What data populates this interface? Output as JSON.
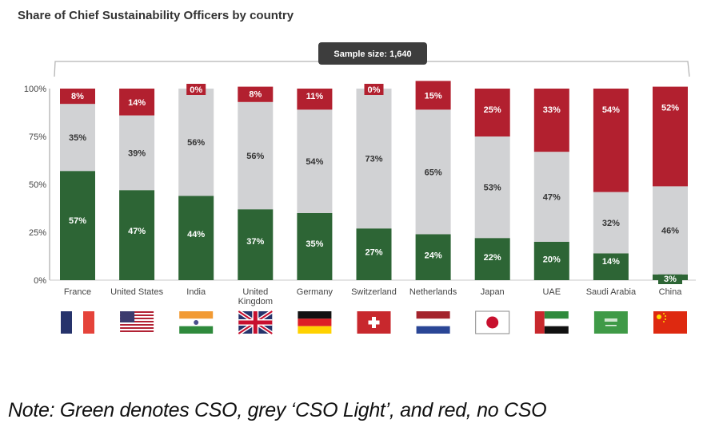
{
  "title": "Share of Chief Sustainability Officers by country",
  "sample_badge": "Sample size: 1,640",
  "note": "Note: Green denotes CSO, grey ‘CSO Light’, and red, no CSO",
  "colors": {
    "cso": "#2d6535",
    "cso_light": "#d1d2d4",
    "no_cso": "#b2202f",
    "badge_bg": "#3d3d3d",
    "axis": "#9a9a9a"
  },
  "chart_data": {
    "type": "bar",
    "stacked": true,
    "title": "Share of Chief Sustainability Officers by country",
    "xlabel": "",
    "ylabel": "",
    "ylim": [
      0,
      100
    ],
    "yticks": [
      "0%",
      "25%",
      "50%",
      "75%",
      "100%"
    ],
    "ytick_values": [
      0,
      25,
      50,
      75,
      100
    ],
    "categories": [
      "France",
      "United States",
      "India",
      "United Kingdom",
      "Germany",
      "Switzerland",
      "Netherlands",
      "Japan",
      "UAE",
      "Saudi Arabia",
      "China"
    ],
    "category_label_lines": [
      [
        "France"
      ],
      [
        "United States"
      ],
      [
        "India"
      ],
      [
        "United",
        "Kingdom"
      ],
      [
        "Germany"
      ],
      [
        "Switzerland"
      ],
      [
        "Netherlands"
      ],
      [
        "Japan"
      ],
      [
        "UAE"
      ],
      [
        "Saudi Arabia"
      ],
      [
        "China"
      ]
    ],
    "flags": [
      "france-flag",
      "united-states-flag",
      "india-flag",
      "united-kingdom-flag",
      "germany-flag",
      "switzerland-flag",
      "netherlands-flag",
      "japan-flag",
      "uae-flag",
      "saudi-arabia-flag",
      "china-flag"
    ],
    "series": [
      {
        "name": "CSO",
        "color": "#2d6535",
        "values": [
          57,
          47,
          44,
          37,
          35,
          27,
          24,
          22,
          20,
          14,
          3
        ]
      },
      {
        "name": "CSO Light",
        "color": "#d1d2d4",
        "values": [
          35,
          39,
          56,
          56,
          54,
          73,
          65,
          53,
          47,
          32,
          46
        ]
      },
      {
        "name": "No CSO",
        "color": "#b2202f",
        "values": [
          8,
          14,
          0,
          8,
          11,
          0,
          15,
          25,
          33,
          54,
          52
        ]
      }
    ],
    "annotation": "Sample size: 1,640",
    "grid": false,
    "legend": "none"
  }
}
